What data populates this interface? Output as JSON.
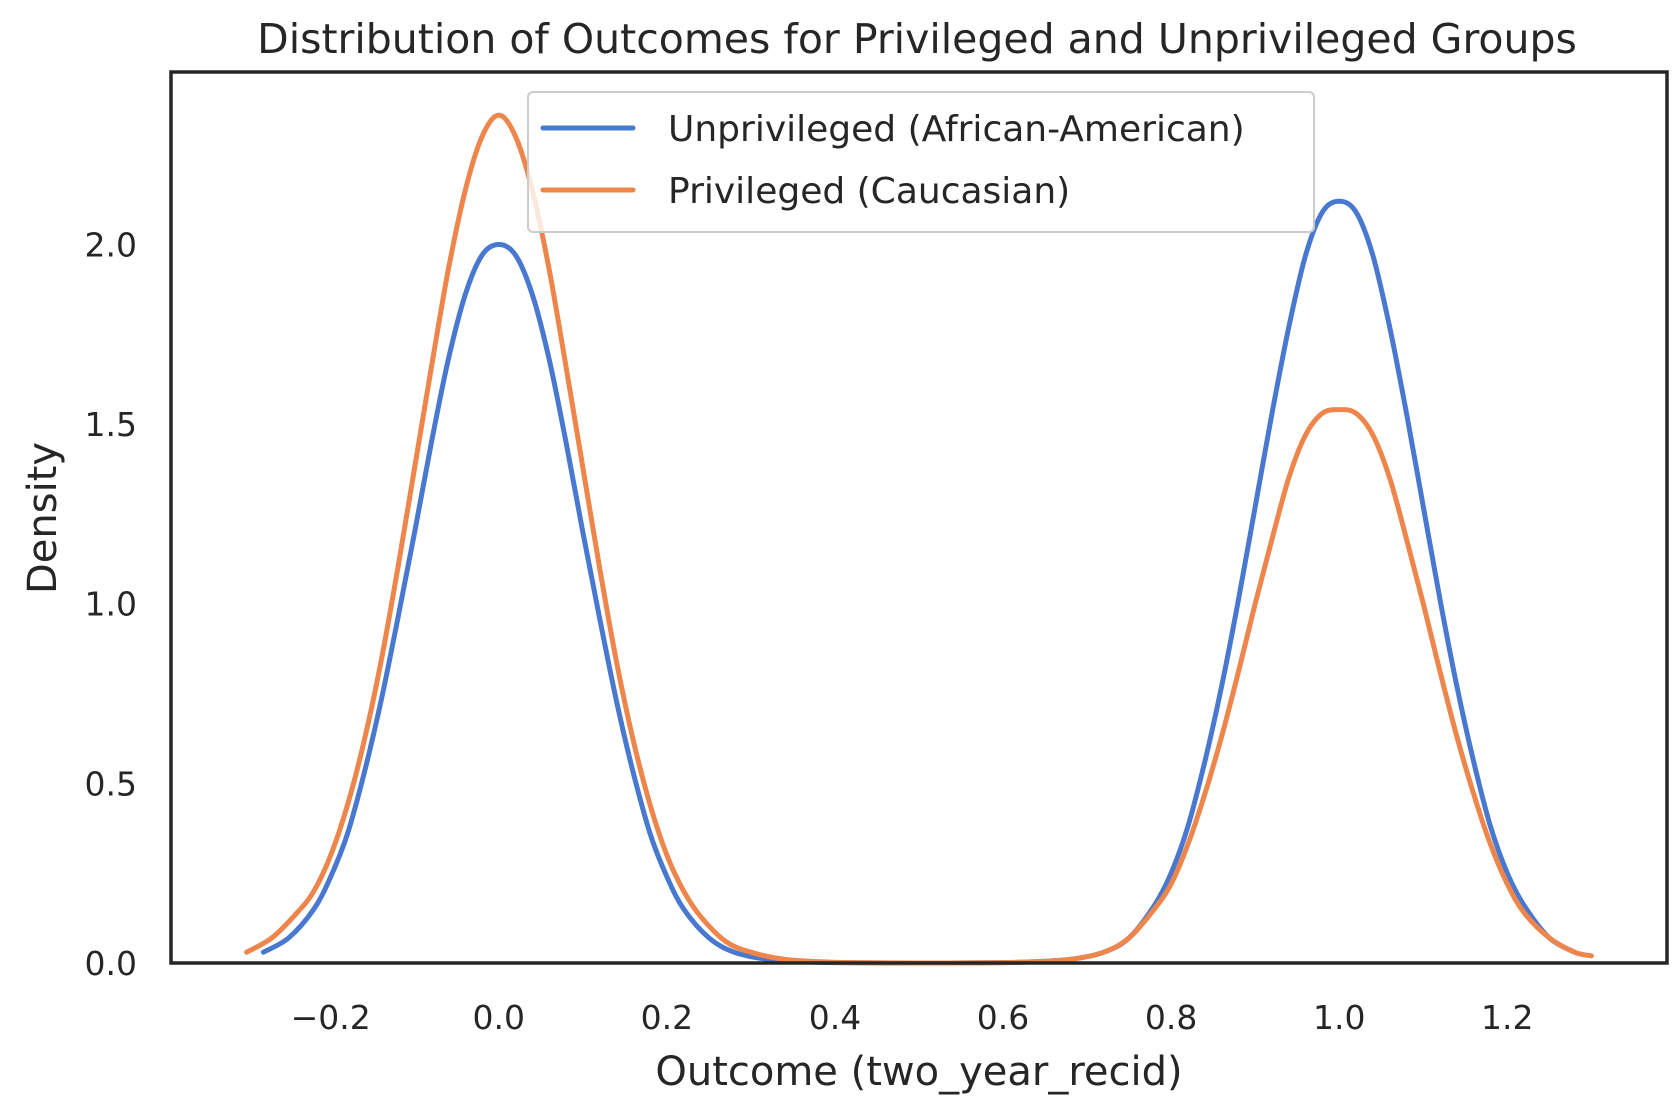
{
  "chart_data": {
    "type": "line",
    "title": "Distribution of Outcomes for Privileged and Unprivileged Groups",
    "xlabel": "Outcome (two_year_recid)",
    "ylabel": "Density",
    "xlim": [
      -0.39,
      1.39
    ],
    "ylim": [
      0,
      2.48
    ],
    "x_ticks": [
      -0.2,
      0.0,
      0.2,
      0.4,
      0.6,
      0.8,
      1.0,
      1.2
    ],
    "x_tick_labels": [
      "−0.2",
      "0.0",
      "0.2",
      "0.4",
      "0.6",
      "0.8",
      "1.0",
      "1.2"
    ],
    "y_ticks": [
      0.0,
      0.5,
      1.0,
      1.5,
      2.0
    ],
    "y_tick_labels": [
      "0.0",
      "0.5",
      "1.0",
      "1.5",
      "2.0"
    ],
    "grid": false,
    "legend_position": "upper-center",
    "series": [
      {
        "name": "Unprivileged (African-American)",
        "color": "#4878d0",
        "x": [
          -0.28,
          -0.25,
          -0.22,
          -0.2,
          -0.18,
          -0.16,
          -0.14,
          -0.12,
          -0.1,
          -0.08,
          -0.06,
          -0.04,
          -0.02,
          0.0,
          0.02,
          0.04,
          0.06,
          0.08,
          0.1,
          0.12,
          0.14,
          0.16,
          0.18,
          0.2,
          0.22,
          0.25,
          0.28,
          0.32,
          0.36,
          0.4,
          0.5,
          0.6,
          0.64,
          0.68,
          0.72,
          0.75,
          0.78,
          0.8,
          0.82,
          0.84,
          0.86,
          0.88,
          0.9,
          0.92,
          0.94,
          0.96,
          0.98,
          1.0,
          1.02,
          1.04,
          1.06,
          1.08,
          1.1,
          1.12,
          1.14,
          1.16,
          1.18,
          1.2,
          1.22,
          1.25,
          1.28
        ],
        "y": [
          0.03,
          0.07,
          0.15,
          0.24,
          0.36,
          0.53,
          0.73,
          0.96,
          1.2,
          1.45,
          1.68,
          1.86,
          1.97,
          2.0,
          1.97,
          1.86,
          1.68,
          1.45,
          1.2,
          0.96,
          0.73,
          0.53,
          0.36,
          0.24,
          0.15,
          0.07,
          0.03,
          0.01,
          0.004,
          0.001,
          0.0,
          0.001,
          0.004,
          0.01,
          0.03,
          0.07,
          0.16,
          0.25,
          0.38,
          0.56,
          0.77,
          1.01,
          1.27,
          1.53,
          1.77,
          1.97,
          2.09,
          2.12,
          2.09,
          1.97,
          1.77,
          1.53,
          1.27,
          1.01,
          0.77,
          0.56,
          0.38,
          0.25,
          0.16,
          0.07,
          0.03
        ]
      },
      {
        "name": "Privileged (Caucasian)",
        "color": "#ee854a",
        "x": [
          -0.3,
          -0.27,
          -0.24,
          -0.22,
          -0.2,
          -0.18,
          -0.16,
          -0.14,
          -0.12,
          -0.1,
          -0.08,
          -0.06,
          -0.04,
          -0.02,
          0.0,
          0.02,
          0.04,
          0.06,
          0.08,
          0.1,
          0.12,
          0.14,
          0.16,
          0.18,
          0.2,
          0.22,
          0.24,
          0.27,
          0.3,
          0.34,
          0.38,
          0.42,
          0.5,
          0.6,
          0.64,
          0.68,
          0.72,
          0.75,
          0.78,
          0.8,
          0.82,
          0.84,
          0.86,
          0.88,
          0.9,
          0.92,
          0.94,
          0.96,
          0.98,
          1.0,
          1.02,
          1.04,
          1.06,
          1.08,
          1.1,
          1.12,
          1.14,
          1.16,
          1.18,
          1.2,
          1.22,
          1.25,
          1.28,
          1.3
        ],
        "y": [
          0.03,
          0.07,
          0.14,
          0.2,
          0.3,
          0.44,
          0.62,
          0.84,
          1.1,
          1.38,
          1.66,
          1.93,
          2.15,
          2.3,
          2.36,
          2.3,
          2.15,
          1.93,
          1.66,
          1.38,
          1.1,
          0.84,
          0.62,
          0.44,
          0.3,
          0.2,
          0.13,
          0.06,
          0.03,
          0.01,
          0.004,
          0.001,
          0.0,
          0.001,
          0.004,
          0.01,
          0.03,
          0.07,
          0.15,
          0.22,
          0.33,
          0.47,
          0.63,
          0.81,
          1.0,
          1.18,
          1.35,
          1.47,
          1.53,
          1.54,
          1.53,
          1.47,
          1.35,
          1.18,
          1.0,
          0.81,
          0.63,
          0.47,
          0.33,
          0.22,
          0.14,
          0.07,
          0.03,
          0.02
        ]
      }
    ]
  }
}
